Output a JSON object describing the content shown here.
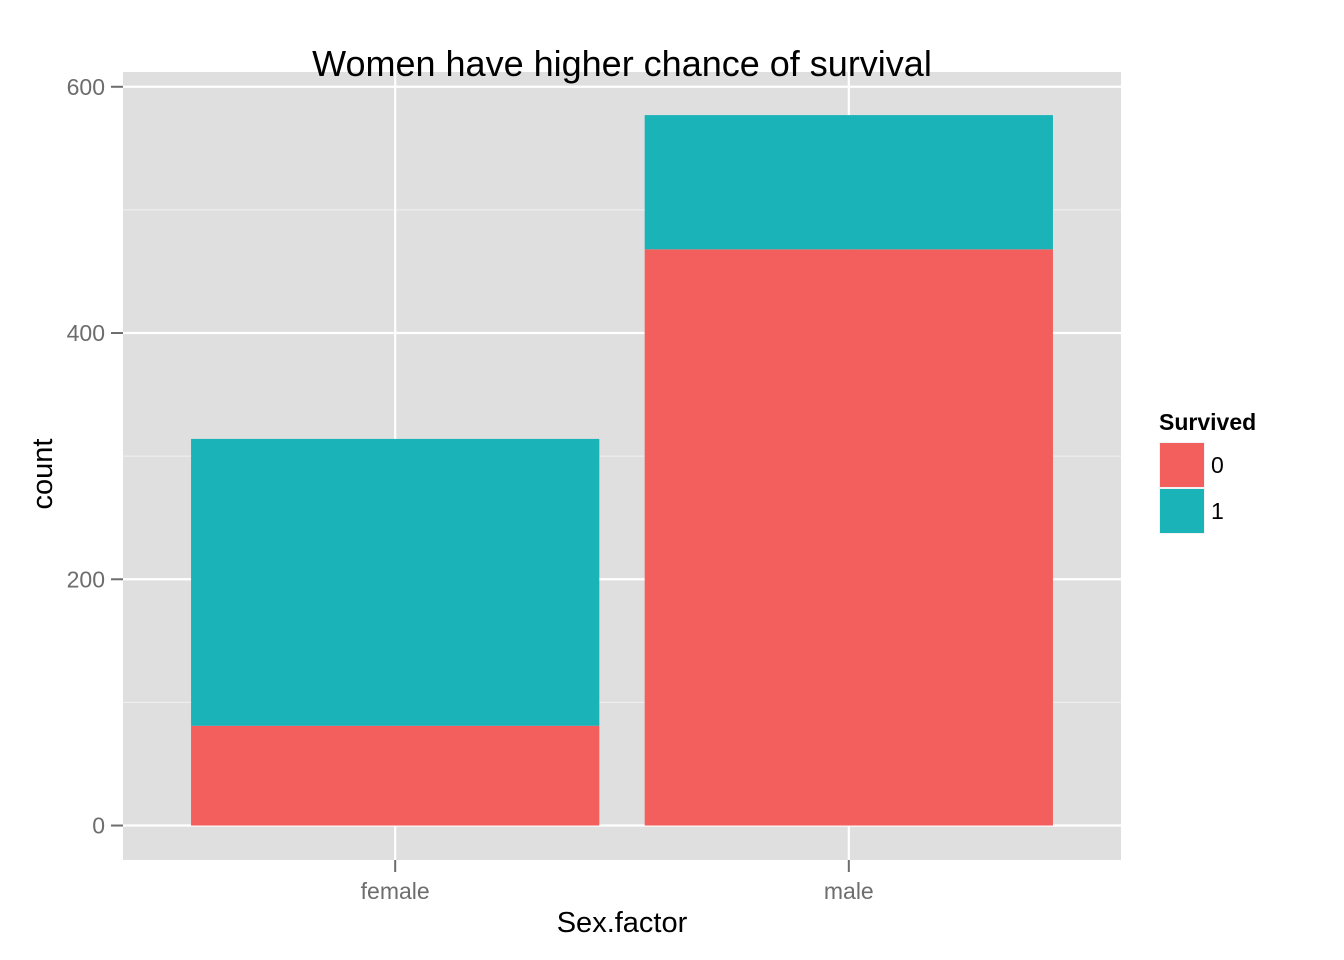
{
  "chart_data": {
    "type": "bar",
    "stacked": true,
    "title": "Women have higher chance of survival",
    "xlabel": "Sex.factor",
    "ylabel": "count",
    "categories": [
      "female",
      "male"
    ],
    "series": [
      {
        "name": "0",
        "values": [
          81,
          468
        ],
        "color": "#F25F5C"
      },
      {
        "name": "1",
        "values": [
          233,
          109
        ],
        "color": "#1AB3B8"
      }
    ],
    "ylim": [
      -28,
      612
    ],
    "yticks": [
      0,
      200,
      400,
      600
    ],
    "grid": true,
    "legend": {
      "title": "Survived",
      "position": "right"
    },
    "colors": {
      "panel": "#DFDFDF",
      "grid": "#FFFFFF",
      "tick": "#6D6D6D"
    }
  }
}
